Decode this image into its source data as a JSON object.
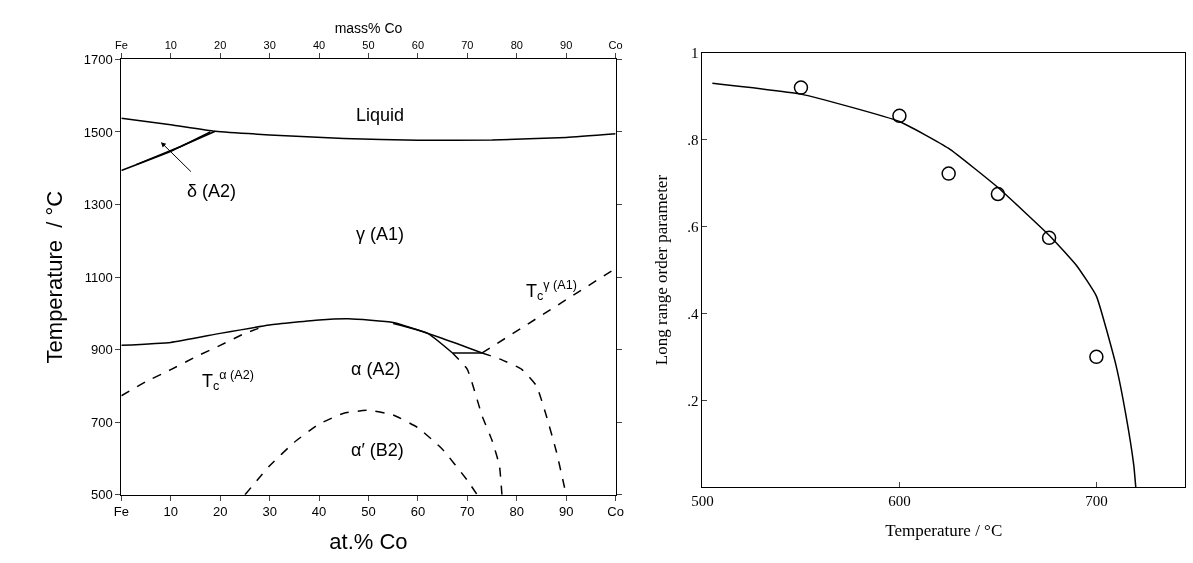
{
  "chart_data": [
    {
      "type": "line",
      "xlabel": "at.% Co",
      "ylabel": "Temperature  / °C",
      "x2label": "mass% Co",
      "xlim": [
        0,
        100
      ],
      "xticks": [
        {
          "value": 0,
          "label": "Fe"
        },
        10,
        20,
        30,
        40,
        50,
        60,
        70,
        80,
        90,
        {
          "value": 100,
          "label": "Co"
        }
      ],
      "x2lim": [
        0,
        100
      ],
      "x2ticks": [
        {
          "value": 0,
          "label": "Fe"
        },
        10,
        20,
        30,
        40,
        50,
        60,
        70,
        80,
        90,
        {
          "value": 100,
          "label": "Co"
        }
      ],
      "ylim": [
        500,
        1700
      ],
      "yticks": [
        500,
        700,
        900,
        1100,
        1300,
        1500,
        1700
      ],
      "marker": "none",
      "series": [
        {
          "color": "#000000",
          "line_style": "solid",
          "x": [
            0,
            10,
            19,
            30,
            45,
            60,
            75,
            90,
            100
          ],
          "values": [
            1538,
            1520,
            1502,
            1492,
            1482,
            1477,
            1478,
            1485,
            1495
          ]
        },
        {
          "color": "#000000",
          "line_style": "solid",
          "x": [
            0,
            10,
            18
          ],
          "values": [
            1394,
            1447,
            1500
          ]
        },
        {
          "color": "#000000",
          "line_style": "solid",
          "x": [
            3,
            12,
            19
          ],
          "values": [
            1410,
            1460,
            1502
          ]
        },
        {
          "color": "#000000",
          "line_style": "solid",
          "x": [
            0,
            10,
            20,
            30,
            40,
            46,
            55,
            65,
            73
          ],
          "values": [
            912,
            920,
            945,
            968,
            982,
            985,
            975,
            931,
            891
          ]
        },
        {
          "color": "#000000",
          "line_style": "solid",
          "x": [
            55,
            62,
            67
          ],
          "values": [
            972,
            945,
            891
          ]
        },
        {
          "color": "#000000",
          "line_style": "solid",
          "x": [
            67,
            73
          ],
          "values": [
            891,
            891
          ]
        },
        {
          "color": "#000000",
          "line_style": "dashed",
          "x": [
            0,
            5,
            10,
            15,
            20,
            25,
            28
          ],
          "values": [
            773,
            812,
            845,
            880,
            912,
            945,
            960
          ]
        },
        {
          "color": "#000000",
          "line_style": "dashed",
          "x": [
            73,
            100
          ],
          "values": [
            891,
            1124
          ]
        },
        {
          "color": "#000000",
          "line_style": "dashed",
          "x": [
            67,
            70,
            73,
            75,
            76.5,
            77
          ],
          "values": [
            891,
            846,
            717,
            650,
            580,
            500
          ]
        },
        {
          "color": "#000000",
          "line_style": "dashed",
          "x": [
            73,
            77,
            81,
            84,
            86,
            88,
            90
          ],
          "values": [
            891,
            872,
            846,
            800,
            717,
            620,
            500
          ]
        },
        {
          "color": "#000000",
          "line_style": "dashed",
          "x": [
            25,
            30,
            35,
            40,
            45,
            50,
            55,
            60,
            65,
            70,
            72
          ],
          "values": [
            500,
            580,
            645,
            695,
            725,
            733,
            720,
            685,
            625,
            540,
            500
          ]
        }
      ],
      "annotations": [
        "Liquid",
        "δ (A2)",
        "γ (A1)",
        "α (A2)",
        "α′ (B2)",
        "T$_{c}$$^{α (A2)}$",
        "T$_{c}$$^{γ (A1)}$"
      ]
    },
    {
      "type": "scatter",
      "xlabel": "Temperature / °C",
      "ylabel": "Long range order parameter",
      "xlim": [
        500,
        745
      ],
      "xticks": [
        500,
        600,
        700
      ],
      "ylim": [
        0,
        1
      ],
      "yticks": [
        {
          "value": 0.2,
          "label": ".2"
        },
        {
          "value": 0.4,
          "label": ".4"
        },
        {
          "value": 0.6,
          "label": ".6"
        },
        {
          "value": 0.8,
          "label": ".8"
        },
        1
      ],
      "marker": "circle",
      "series": [
        {
          "color": "#000000",
          "x": [
            550,
            600,
            625,
            650,
            676,
            700
          ],
          "values": [
            0.92,
            0.855,
            0.722,
            0.675,
            0.574,
            0.3
          ]
        },
        {
          "type": "line",
          "color": "#000000",
          "marker": "none",
          "line_style": "solid",
          "x": [
            505,
            550,
            600,
            625,
            650,
            676,
            690,
            700,
            710,
            715,
            719,
            720
          ],
          "values": [
            0.93,
            0.905,
            0.842,
            0.78,
            0.69,
            0.58,
            0.51,
            0.44,
            0.28,
            0.166,
            0.05,
            0
          ]
        }
      ]
    }
  ]
}
